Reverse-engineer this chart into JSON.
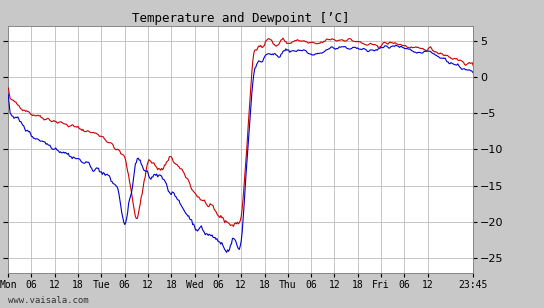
{
  "title": "Temperature and Dewpoint [’C]",
  "bg_color": "#c8c8c8",
  "plot_bg_color": "#ffffff",
  "grid_color": "#bbbbbb",
  "temp_color": "#cc0000",
  "dew_color": "#0000cc",
  "ylim": [
    -27,
    7
  ],
  "yticks": [
    -25,
    -20,
    -15,
    -10,
    -5,
    0,
    5
  ],
  "x_tick_labels": [
    "Mon",
    "06",
    "12",
    "18",
    "Tue",
    "06",
    "12",
    "18",
    "Wed",
    "06",
    "12",
    "18",
    "Thu",
    "06",
    "12",
    "18",
    "Fri",
    "06",
    "12",
    "23:45"
  ],
  "watermark": "www.vaisala.com",
  "line_width": 0.8,
  "total_hours": 119.75
}
